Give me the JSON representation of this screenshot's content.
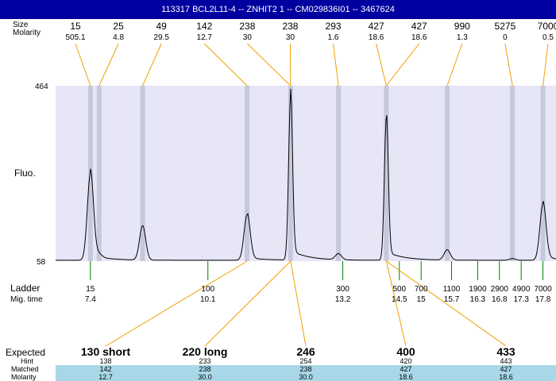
{
  "title": "113317  BCL2L11-4 -- ZNHIT2 1 -- CM029836I01 -- 3467624",
  "labels": {
    "size": "Size",
    "molarity": "Molarity",
    "fluo": "Fluo.",
    "ladder": "Ladder",
    "mig_time": "Mig. time",
    "expected": "Expected",
    "hint": "Hint",
    "matched": "Matched",
    "molarity_row": "Molarity"
  },
  "chart_data": {
    "type": "line",
    "ylabel": "Fluo.",
    "ylim": [
      58,
      464
    ],
    "ytick_labels": [
      "464",
      "58"
    ],
    "xlim": [
      6.6,
      18.1
    ],
    "baseline": 60,
    "peaks": [
      {
        "size": "15",
        "molarity": "505.1",
        "time": 7.4,
        "height": 200
      },
      {
        "size": "25",
        "molarity": "4.8",
        "time": 7.6,
        "height": 8
      },
      {
        "size": "49",
        "molarity": "29.5",
        "time": 8.6,
        "height": 80
      },
      {
        "size": "142",
        "molarity": "12.7",
        "time": 11.0,
        "height": 105
      },
      {
        "size": "238",
        "molarity": "30",
        "time": 12.0,
        "height": 375
      },
      {
        "size": "238",
        "molarity": "30",
        "time": 12.0,
        "height": 0
      },
      {
        "size": "293",
        "molarity": "1.6",
        "time": 13.1,
        "height": 14
      },
      {
        "size": "427",
        "molarity": "18.6",
        "time": 14.2,
        "height": 328
      },
      {
        "size": "427",
        "molarity": "18.6",
        "time": 14.2,
        "height": 0
      },
      {
        "size": "990",
        "molarity": "1.3",
        "time": 15.6,
        "height": 24
      },
      {
        "size": "5275",
        "molarity": "0",
        "time": 17.1,
        "height": 4
      },
      {
        "size": "7000",
        "molarity": "0.5",
        "time": 17.8,
        "height": 130
      }
    ],
    "ladder": [
      {
        "size": "15",
        "time": "7.4",
        "t": 7.4
      },
      {
        "size": "100",
        "time": "10.1",
        "t": 10.1
      },
      {
        "size": "300",
        "time": "13.2",
        "t": 13.2
      },
      {
        "size": "500",
        "time": "14.5",
        "t": 14.5
      },
      {
        "size": "700",
        "time": "15",
        "t": 15.0
      },
      {
        "size": "1100",
        "time": "15.7",
        "t": 15.7
      },
      {
        "size": "1900",
        "time": "16.3",
        "t": 16.3
      },
      {
        "size": "2900",
        "time": "16.8",
        "t": 16.8
      },
      {
        "size": "4900",
        "time": "17.3",
        "t": 17.3
      },
      {
        "size": "7000",
        "time": "17.8",
        "t": 17.8
      }
    ],
    "expected": [
      {
        "label": "130 short",
        "hint": "138",
        "matched": "142",
        "molarity": "12.7",
        "peak": 3
      },
      {
        "label": "220 long",
        "hint": "233",
        "matched": "238",
        "molarity": "30.0",
        "peak": 4
      },
      {
        "label": "246",
        "hint": "254",
        "matched": "238",
        "molarity": "30.0",
        "peak": 5
      },
      {
        "label": "400",
        "hint": "420",
        "matched": "427",
        "molarity": "18.6",
        "peak": 7
      },
      {
        "label": "433",
        "hint": "443",
        "matched": "427",
        "molarity": "18.6",
        "peak": 8
      }
    ],
    "colors": {
      "plot_bg": "#e6e6f7",
      "band": "#c8c8dc",
      "connector": "#f0a000",
      "ladder_tick": "#008000",
      "row_bg": "#a8d8e8",
      "title_bg": "#0000a0"
    }
  }
}
